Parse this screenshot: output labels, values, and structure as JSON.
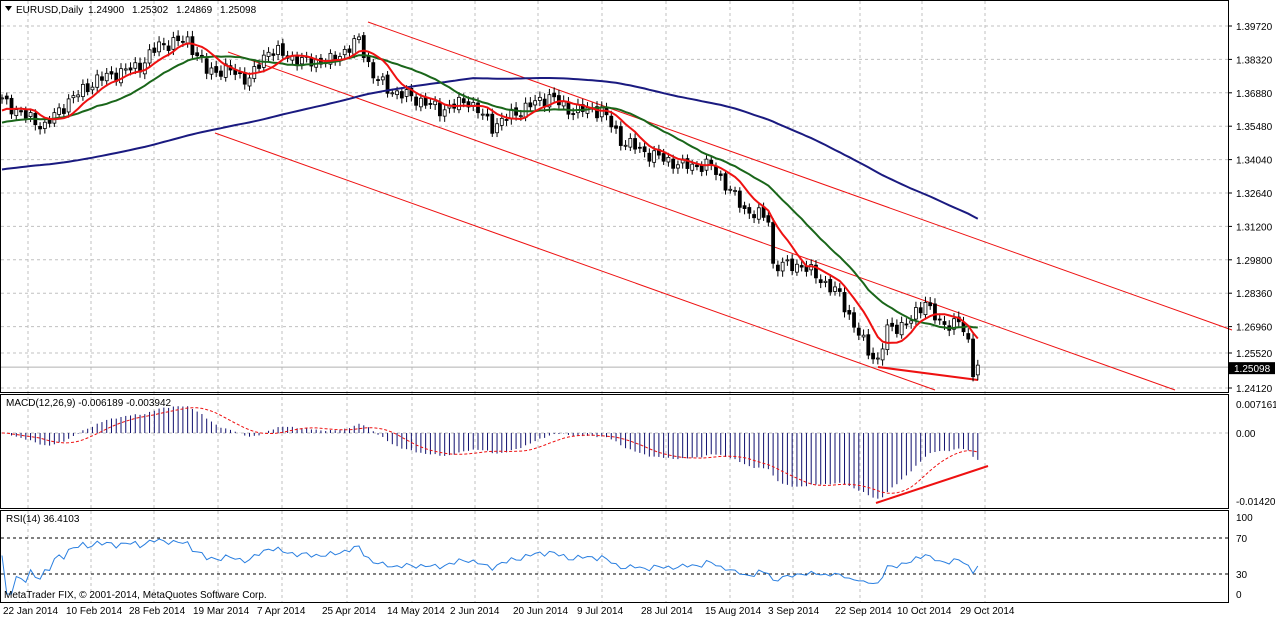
{
  "header": {
    "symbol": "EURUSD,Daily",
    "open": "1.24900",
    "high": "1.25302",
    "low": "1.24869",
    "close": "1.25098"
  },
  "macd": {
    "label": "MACD(12,26,9) -0.006189 -0.003942",
    "ticks": [
      "0.007161",
      "0.00",
      "-0.014207"
    ]
  },
  "rsi": {
    "label": "RSI(14) 36.4103",
    "ticks": [
      "100",
      "70",
      "30",
      "0"
    ]
  },
  "copyright": "MetaTrader FIX, © 2001-2014, MetaQuotes Software Corp.",
  "colors": {
    "ma_fast": "#ee1111",
    "ma_mid": "#1a661a",
    "ma_slow": "#1a1a80",
    "macd_hist": "#10106e",
    "macd_signal": "#ee1111",
    "rsi": "#2a7fe0",
    "channel": "#ee1111"
  },
  "chart_data": {
    "type": "candlestick",
    "title": "EURUSD,Daily",
    "price_ticks": [
      "1.39720",
      "1.38320",
      "1.36880",
      "1.35480",
      "1.34040",
      "1.32640",
      "1.31200",
      "1.29800",
      "1.28360",
      "1.26960",
      "1.25520",
      "1.24120"
    ],
    "current_price": "1.25098",
    "ylim": [
      1.2412,
      1.3972
    ],
    "date_labels": [
      "22 Jan 2014",
      "10 Feb 2014",
      "28 Feb 2014",
      "19 Mar 2014",
      "7 Apr 2014",
      "25 Apr 2014",
      "14 May 2014",
      "2 Jun 2014",
      "20 Jun 2014",
      "9 Jul 2014",
      "28 Jul 2014",
      "15 Aug 2014",
      "3 Sep 2014",
      "22 Sep 2014",
      "10 Oct 2014",
      "29 Oct 2014"
    ],
    "bars": 206,
    "close_path_bar_index_price": [
      [
        0,
        1.365
      ],
      [
        6,
        1.357
      ],
      [
        9,
        1.354
      ],
      [
        14,
        1.365
      ],
      [
        20,
        1.374
      ],
      [
        29,
        1.38
      ],
      [
        33,
        1.389
      ],
      [
        39,
        1.391
      ],
      [
        43,
        1.378
      ],
      [
        48,
        1.378
      ],
      [
        52,
        1.374
      ],
      [
        56,
        1.387
      ],
      [
        63,
        1.382
      ],
      [
        69,
        1.382
      ],
      [
        75,
        1.391
      ],
      [
        78,
        1.376
      ],
      [
        81,
        1.37
      ],
      [
        88,
        1.365
      ],
      [
        92,
        1.361
      ],
      [
        98,
        1.365
      ],
      [
        103,
        1.354
      ],
      [
        109,
        1.361
      ],
      [
        115,
        1.367
      ],
      [
        119,
        1.361
      ],
      [
        126,
        1.361
      ],
      [
        130,
        1.348
      ],
      [
        136,
        1.342
      ],
      [
        143,
        1.337
      ],
      [
        149,
        1.337
      ],
      [
        152,
        1.329
      ],
      [
        156,
        1.318
      ],
      [
        161,
        1.314
      ],
      [
        162,
        1.294
      ],
      [
        168,
        1.294
      ],
      [
        172,
        1.288
      ],
      [
        176,
        1.281
      ],
      [
        179,
        1.268
      ],
      [
        182,
        1.257
      ],
      [
        184,
        1.253
      ],
      [
        186,
        1.266
      ],
      [
        191,
        1.27
      ],
      [
        194,
        1.279
      ],
      [
        197,
        1.268
      ],
      [
        201,
        1.27
      ],
      [
        203,
        1.26
      ],
      [
        204,
        1.249
      ],
      [
        205,
        1.251
      ]
    ]
  }
}
